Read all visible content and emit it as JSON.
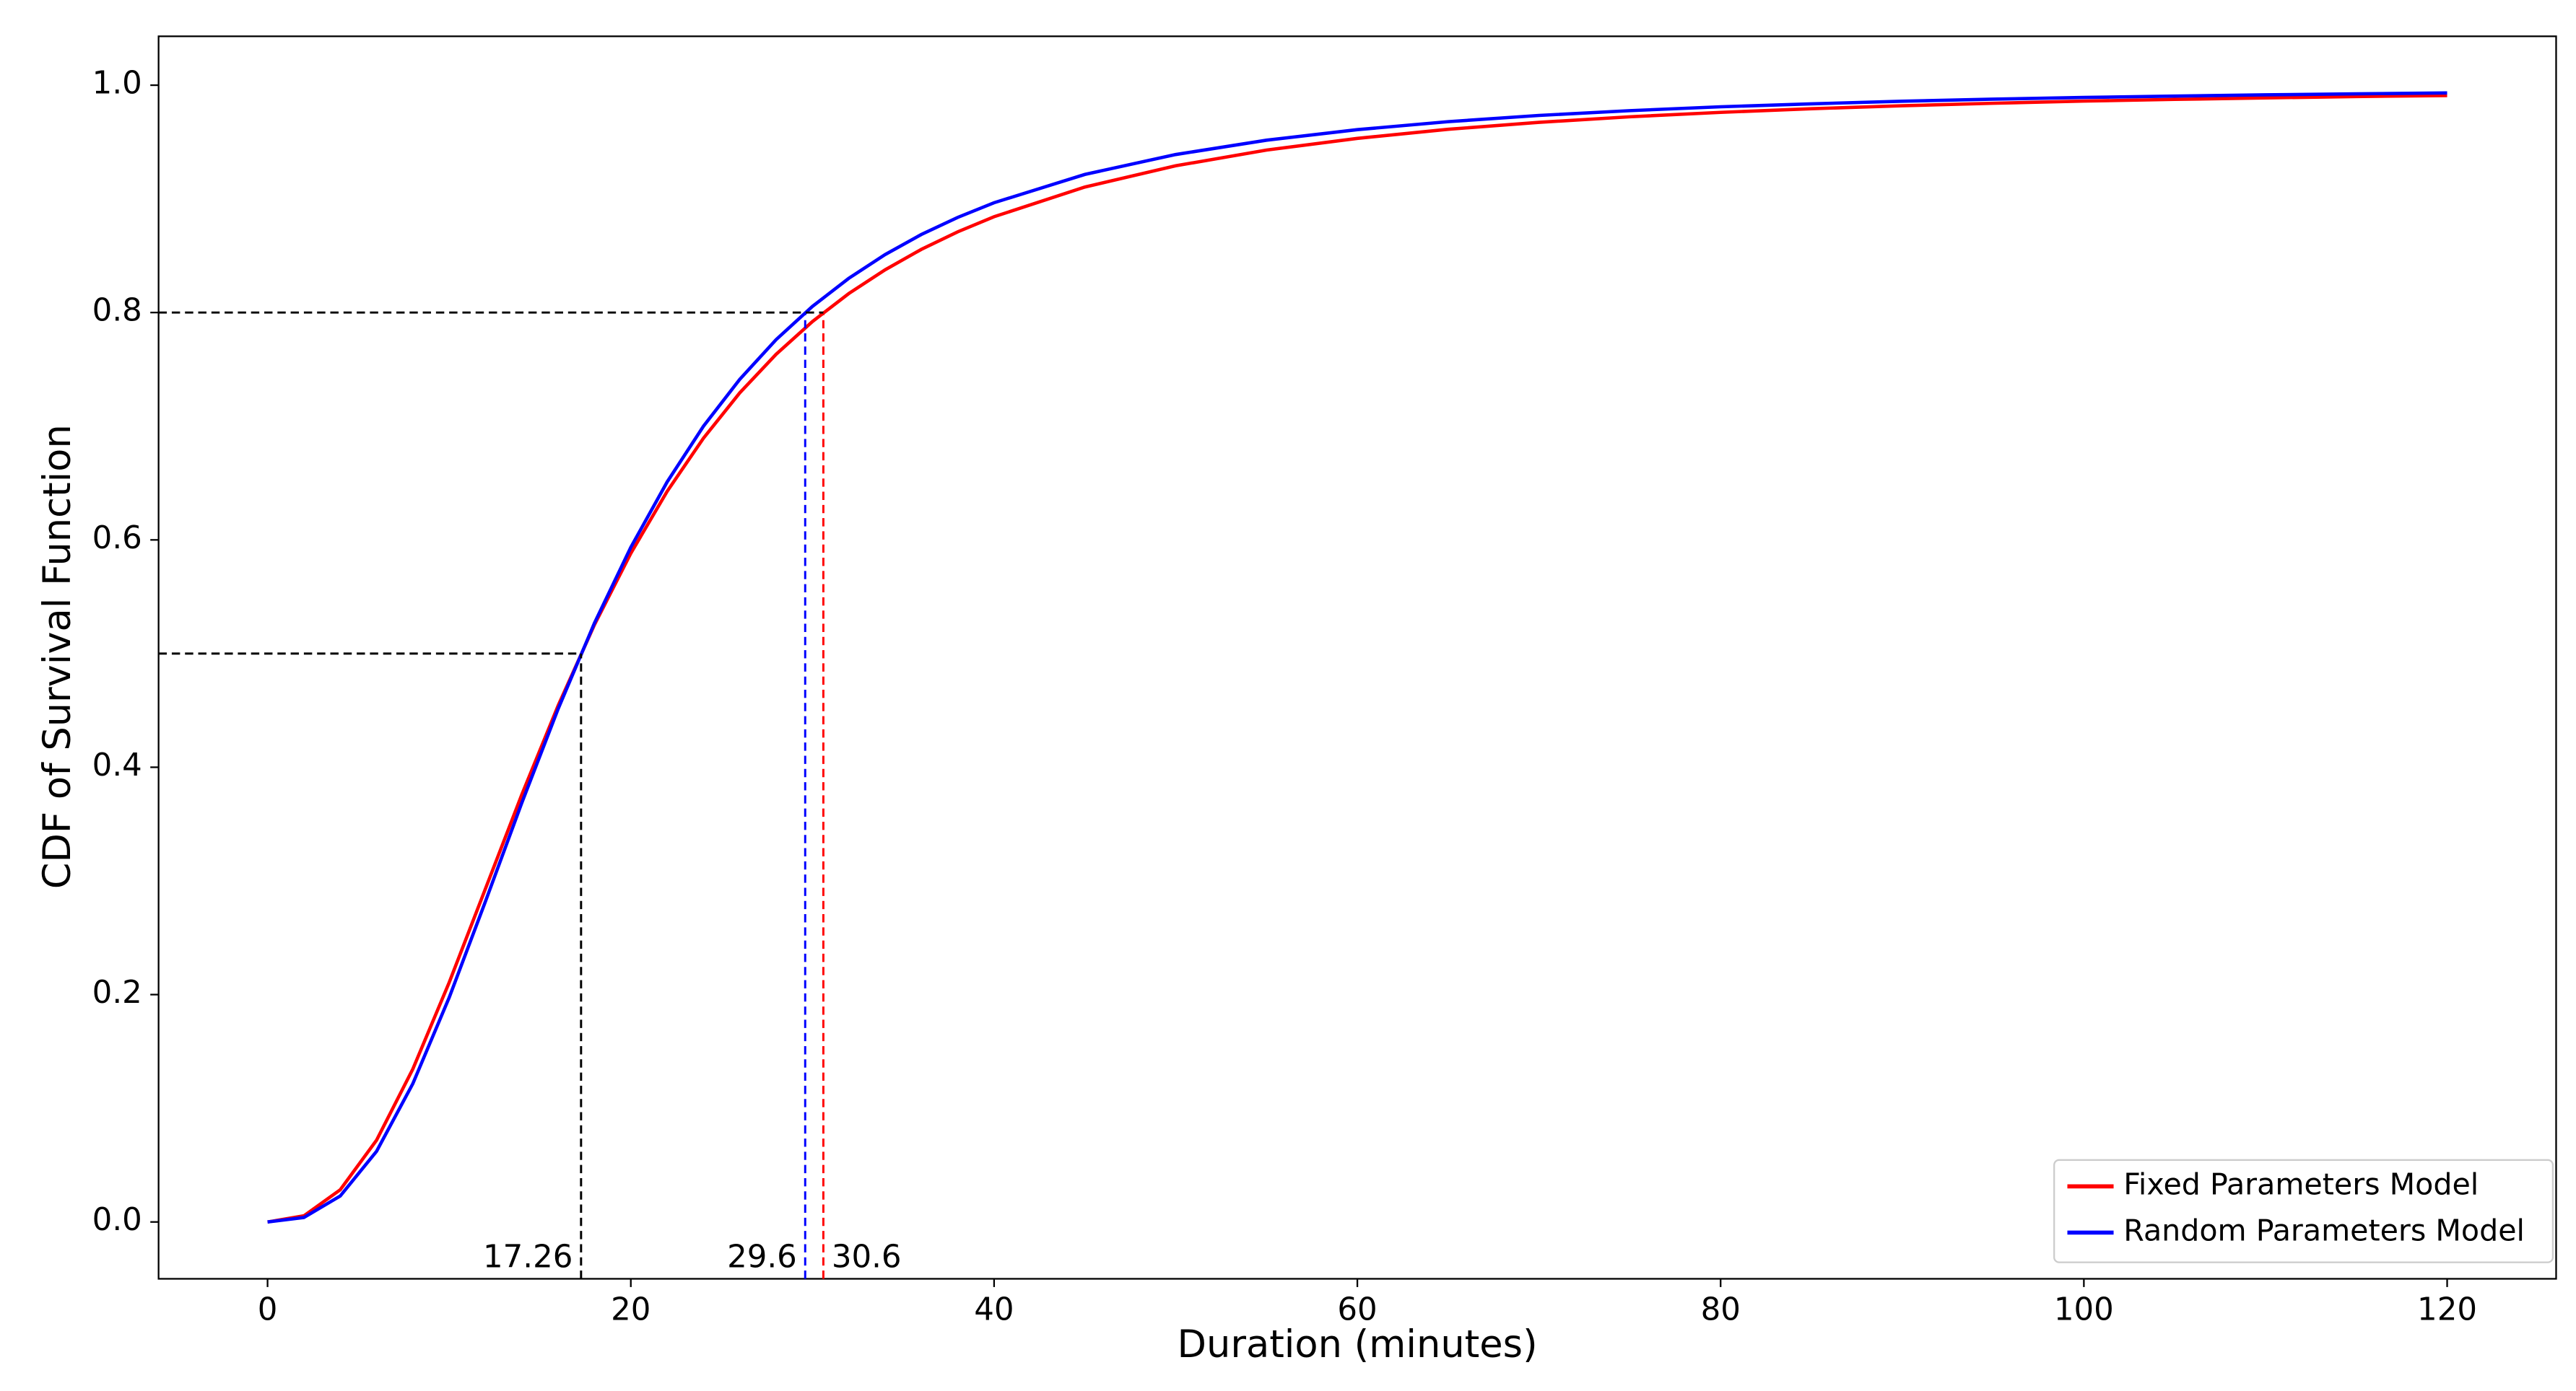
{
  "chart_data": {
    "type": "line",
    "xlabel": "Duration (minutes)",
    "ylabel": "CDF of Survival Function",
    "x": [
      0,
      2,
      4,
      6,
      8,
      10,
      12,
      14,
      16,
      18,
      20,
      22,
      24,
      26,
      28,
      30,
      32,
      34,
      36,
      38,
      40,
      45,
      50,
      55,
      60,
      65,
      70,
      75,
      80,
      85,
      90,
      95,
      100,
      105,
      110,
      115,
      120
    ],
    "series": [
      {
        "name": "Fixed Parameters Model",
        "color": "#ff0000",
        "values": [
          0,
          0.0054,
          0.0283,
          0.0719,
          0.1346,
          0.2107,
          0.2933,
          0.376,
          0.4543,
          0.5254,
          0.5882,
          0.6427,
          0.6895,
          0.7294,
          0.7633,
          0.7921,
          0.8167,
          0.8376,
          0.8556,
          0.871,
          0.8843,
          0.9104,
          0.9291,
          0.9429,
          0.9532,
          0.9612,
          0.9673,
          0.9722,
          0.9761,
          0.9793,
          0.9819,
          0.9841,
          0.986,
          0.9875,
          0.9888,
          0.99,
          0.9909
        ]
      },
      {
        "name": "Random Parameters Model",
        "color": "#0000ff",
        "values": [
          0,
          0.0039,
          0.0228,
          0.0621,
          0.1217,
          0.1974,
          0.2821,
          0.3687,
          0.4514,
          0.5269,
          0.5935,
          0.651,
          0.7,
          0.7413,
          0.7762,
          0.8054,
          0.8301,
          0.851,
          0.8687,
          0.8837,
          0.8966,
          0.9215,
          0.939,
          0.9516,
          0.9609,
          0.9679,
          0.9734,
          0.9776,
          0.981,
          0.9836,
          0.9859,
          0.9877,
          0.9892,
          0.9904,
          0.9915,
          0.9924,
          0.9932
        ]
      }
    ],
    "reference_lines": [
      {
        "x": 17.26,
        "y": 0.5,
        "color": "#000000",
        "label_side": "left",
        "horizontal": true
      },
      {
        "x": 29.6,
        "y": 0.8,
        "color": "#0000ff",
        "label_side": "left",
        "horizontal": false
      },
      {
        "x": 30.6,
        "y": 0.8,
        "color": "#ff0000",
        "label_side": "right",
        "horizontal": true
      }
    ],
    "xlim": [
      -6,
      126
    ],
    "ylim": [
      -0.05,
      1.043
    ],
    "xticks": [
      0,
      20,
      40,
      60,
      80,
      100,
      120
    ],
    "yticks": [
      {
        "value": 0,
        "label": "0.0"
      },
      0.2,
      0.4,
      0.6,
      0.8,
      {
        "value": 1,
        "label": "1.0"
      }
    ],
    "legend": "lower right"
  }
}
